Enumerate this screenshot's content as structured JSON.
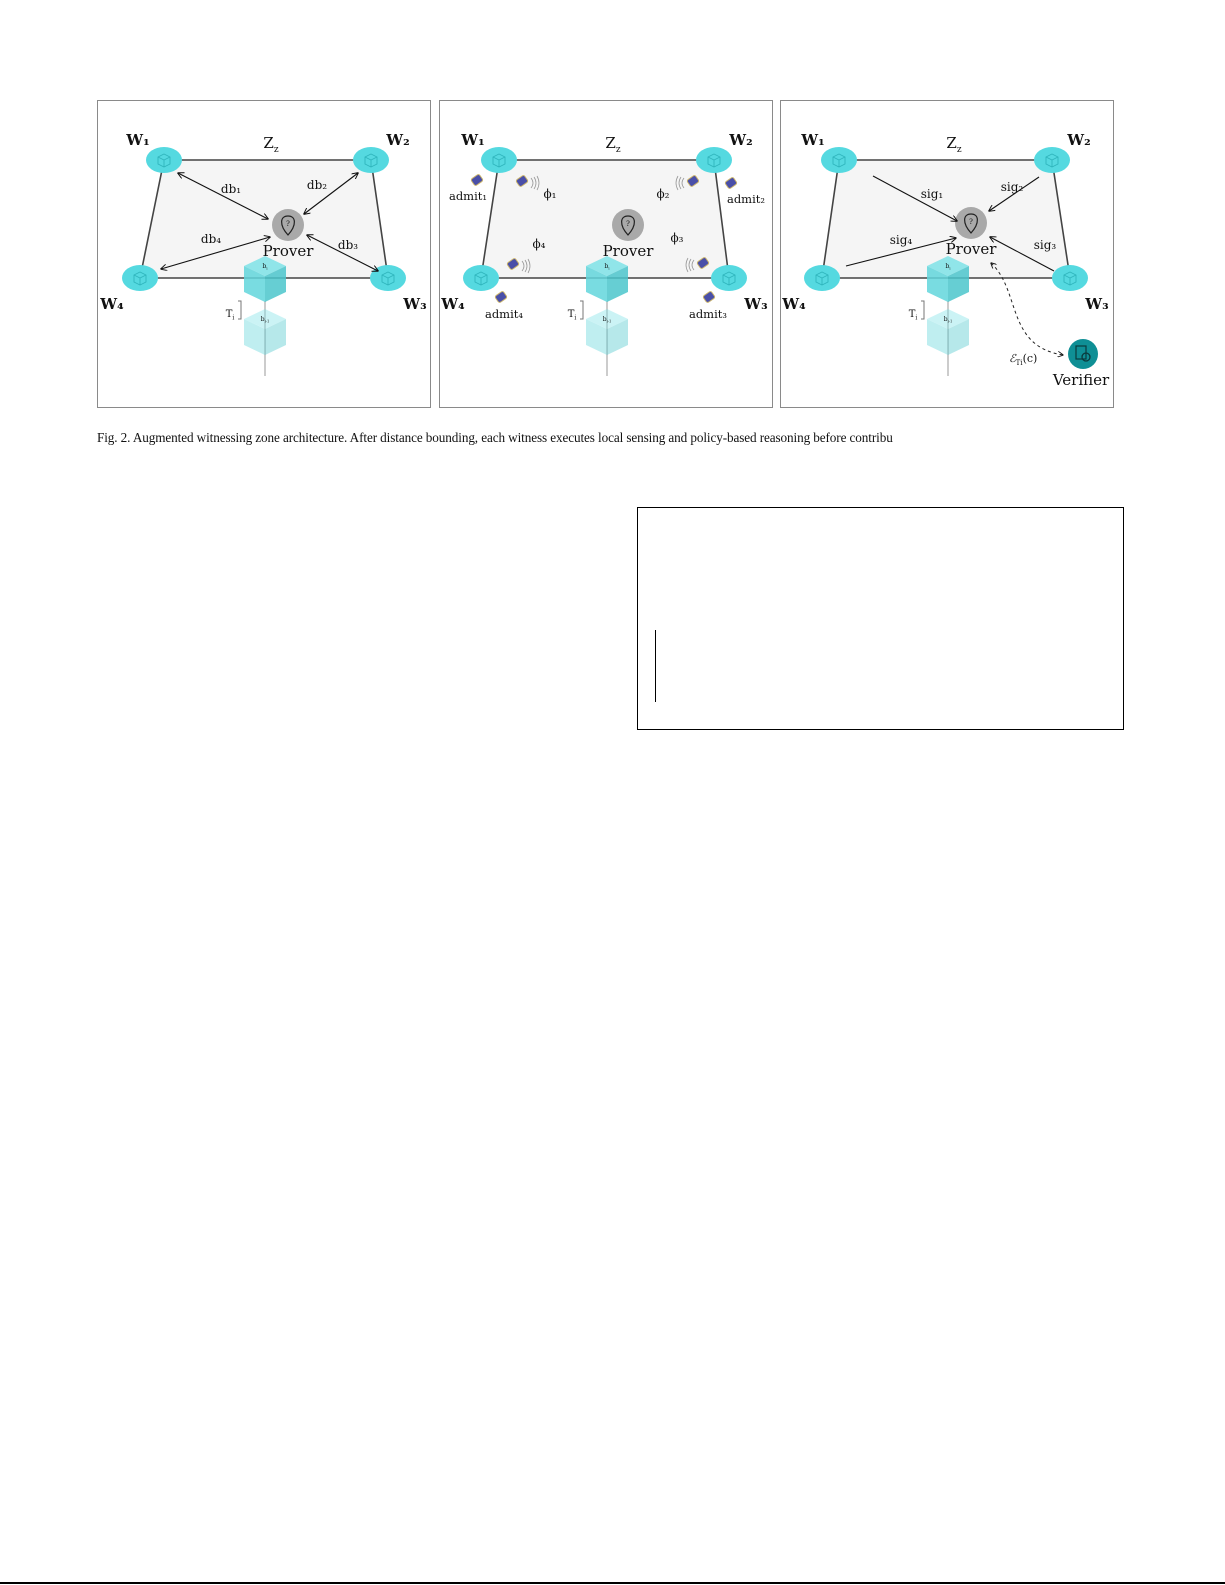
{
  "figure": {
    "zone_label": "Z",
    "zone_sub": "z",
    "prover_label": "Prover",
    "verifier_label": "Verifier",
    "block_top": "b",
    "block_top_sub": "i",
    "block_bottom": "b",
    "block_bottom_sub": "i-1",
    "interval_label": "T",
    "interval_sub": "i",
    "witnesses": [
      "W₁",
      "W₂",
      "W₃",
      "W₄"
    ],
    "panel1": {
      "links": [
        "db₁",
        "db₂",
        "db₃",
        "db₄"
      ]
    },
    "panel2": {
      "phis": [
        "ϕ₁",
        "ϕ₂",
        "ϕ₃",
        "ϕ₄"
      ],
      "admits": [
        "admit₁",
        "admit₂",
        "admit₃",
        "admit₄"
      ]
    },
    "panel3": {
      "sigs": [
        "sig₁",
        "sig₂",
        "sig₃",
        "sig₄"
      ],
      "evidence": "ℰ",
      "evidence_sub": "Ti",
      "evidence_arg": "(c)"
    },
    "icons": {
      "witness": "cube-icon",
      "prover": "location-pin-question-icon",
      "verifier": "document-search-icon",
      "sensor": "sensor-bug-icon"
    },
    "colors": {
      "witness": "#55d9e0",
      "prover": "#a9a9a9",
      "verifier": "#0f8f95",
      "zone_fill": "#f5f5f5"
    }
  },
  "caption": "Fig. 2.  Augmented witnessing zone architecture. After distance bounding, each witness executes local sensing and policy-based reasoning before contribu"
}
